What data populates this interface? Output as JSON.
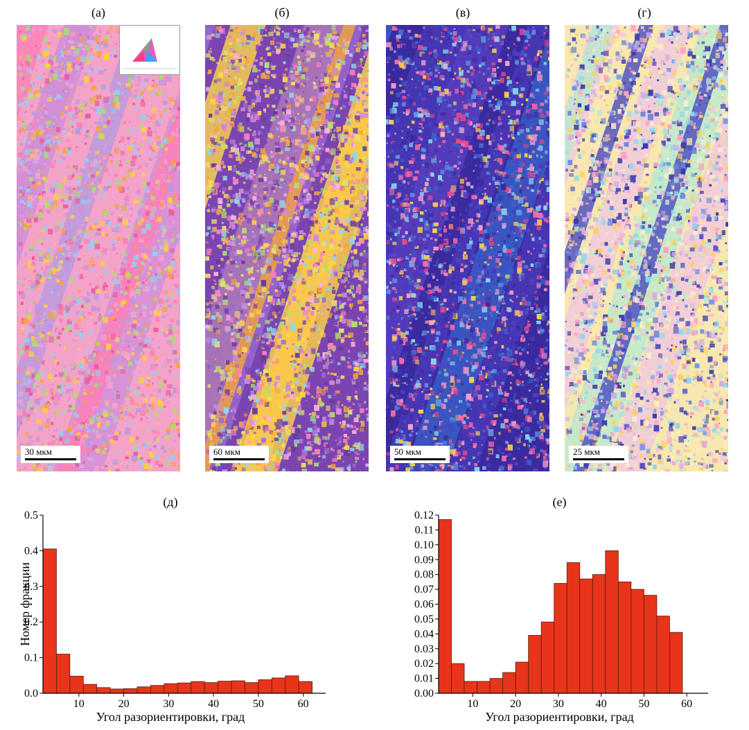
{
  "maps": [
    {
      "label": "(а)",
      "scale": "30 мкм",
      "palette": [
        "#f4a3c8",
        "#d08fd8",
        "#b79ae0",
        "#ff7fb5",
        "#ffd23a",
        "#f6a540",
        "#8fd0f0",
        "#a8e06a",
        "#e85aa0",
        "#c6b6e8",
        "#ff9fd0"
      ]
    },
    {
      "label": "(б)",
      "scale": "60 мкм",
      "palette": [
        "#7a45b0",
        "#9a6ad0",
        "#ffd64a",
        "#f7a63a",
        "#ff7fbf",
        "#8fd8e8",
        "#b0e070",
        "#c888e8",
        "#6a3a9a",
        "#ffb0e0",
        "#e8e070"
      ]
    },
    {
      "label": "(в)",
      "scale": "50 мкм",
      "palette": [
        "#3a2aa0",
        "#4a3ab8",
        "#5a40c0",
        "#3a60c8",
        "#ff6fa8",
        "#ffd24a",
        "#8ad8f0",
        "#e84a8a",
        "#5a90e0",
        "#4030a8",
        "#f8a0c8"
      ]
    },
    {
      "label": "(г)",
      "scale": "25 мкм",
      "palette": [
        "#f8e8b0",
        "#f0c8e0",
        "#b8e8d0",
        "#4a4ac0",
        "#6a8ae0",
        "#d0a8e8",
        "#8ad8f0",
        "#ffd05a",
        "#ff9fc8",
        "#f8f0d0",
        "#3a3aa8"
      ]
    }
  ],
  "chart_data": [
    {
      "type": "bar",
      "title": "(д)",
      "xlabel": "Угол разориентировки, град",
      "ylabel": "Номер фракции",
      "bin_width": 3,
      "x_start": 2,
      "values": [
        0.405,
        0.11,
        0.048,
        0.025,
        0.016,
        0.012,
        0.013,
        0.018,
        0.022,
        0.027,
        0.029,
        0.033,
        0.03,
        0.034,
        0.035,
        0.03,
        0.038,
        0.043,
        0.049,
        0.033
      ],
      "xlim": [
        2,
        65
      ],
      "ylim": [
        0,
        0.5
      ],
      "xticks": [
        10,
        20,
        30,
        40,
        50,
        60
      ],
      "yticks": [
        0.0,
        0.1,
        0.2,
        0.3,
        0.4,
        0.5
      ],
      "ytick_labels": [
        "0.0",
        "0.1",
        "0.2",
        "0.3",
        "0.4",
        "0.5"
      ],
      "bar_color": "#e8341a"
    },
    {
      "type": "bar",
      "title": "(е)",
      "xlabel": "Угол разориентировки, град",
      "ylabel": "",
      "bin_width": 3,
      "x_start": 2,
      "values": [
        0.117,
        0.02,
        0.008,
        0.008,
        0.01,
        0.014,
        0.021,
        0.039,
        0.048,
        0.074,
        0.088,
        0.077,
        0.08,
        0.096,
        0.075,
        0.07,
        0.066,
        0.052,
        0.041
      ],
      "xlim": [
        2,
        65
      ],
      "ylim": [
        0,
        0.12
      ],
      "xticks": [
        10,
        20,
        30,
        40,
        50,
        60
      ],
      "yticks": [
        0.0,
        0.01,
        0.02,
        0.03,
        0.04,
        0.05,
        0.06,
        0.07,
        0.08,
        0.09,
        0.1,
        0.11,
        0.12
      ],
      "ytick_labels": [
        "0.00",
        "0.01",
        "0.02",
        "0.03",
        "0.04",
        "0.05",
        "0.06",
        "0.07",
        "0.08",
        "0.09",
        "0.10",
        "0.11",
        "0.12"
      ],
      "bar_color": "#e8341a"
    }
  ]
}
